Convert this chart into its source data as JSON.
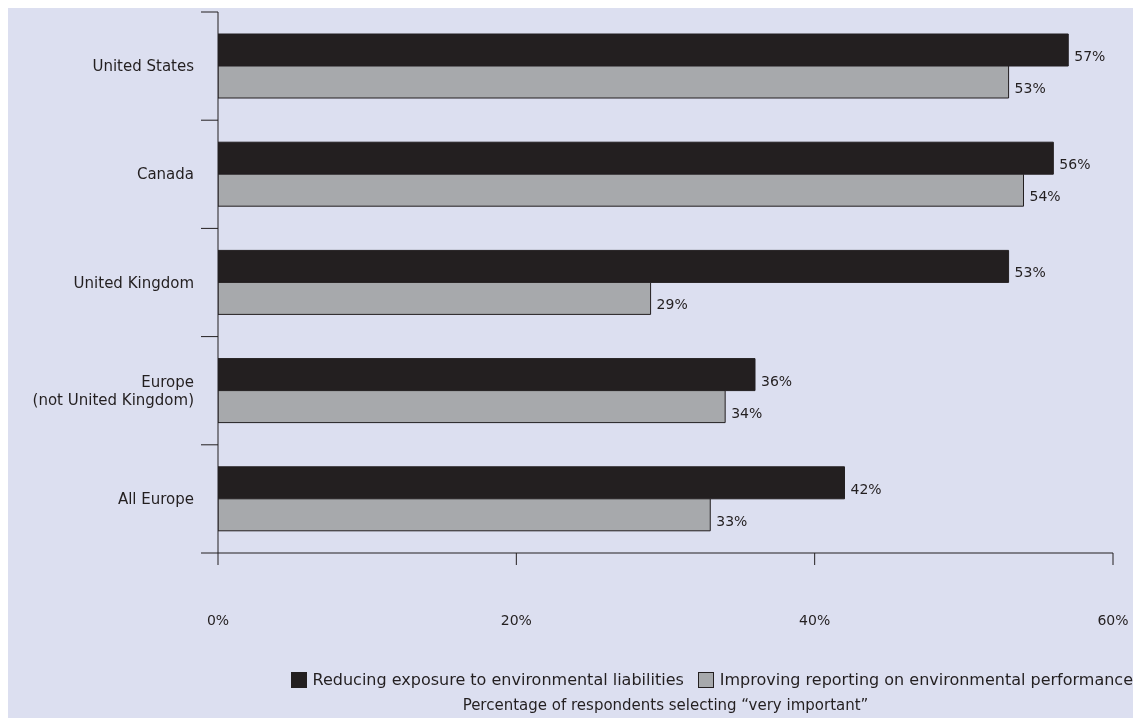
{
  "chart_data": {
    "type": "bar",
    "orientation": "horizontal",
    "xlabel": "Percentage of respondents selecting “very important”",
    "categories": [
      "United States",
      "Canada",
      "United Kingdom",
      "Europe\n(not United Kingdom)",
      "All Europe"
    ],
    "series": [
      {
        "name": "Reducing exposure to environmental liabilities",
        "color": "#231f20",
        "values": [
          57,
          56,
          53,
          36,
          42
        ],
        "value_labels": [
          "57%",
          "56%",
          "53%",
          "36%",
          "42%"
        ]
      },
      {
        "name": "Improving reporting on environmental performance",
        "color": "#a7a9ac",
        "values": [
          53,
          54,
          29,
          34,
          33
        ],
        "value_labels": [
          "53%",
          "54%",
          "29%",
          "34%",
          "33%"
        ]
      }
    ],
    "xlim": [
      0,
      60
    ],
    "xticks": [
      {
        "value": 0,
        "label": "0%"
      },
      {
        "value": 20,
        "label": "20%"
      },
      {
        "value": 40,
        "label": "40%"
      },
      {
        "value": 60,
        "label": "60%"
      }
    ],
    "legend": "bottom"
  }
}
